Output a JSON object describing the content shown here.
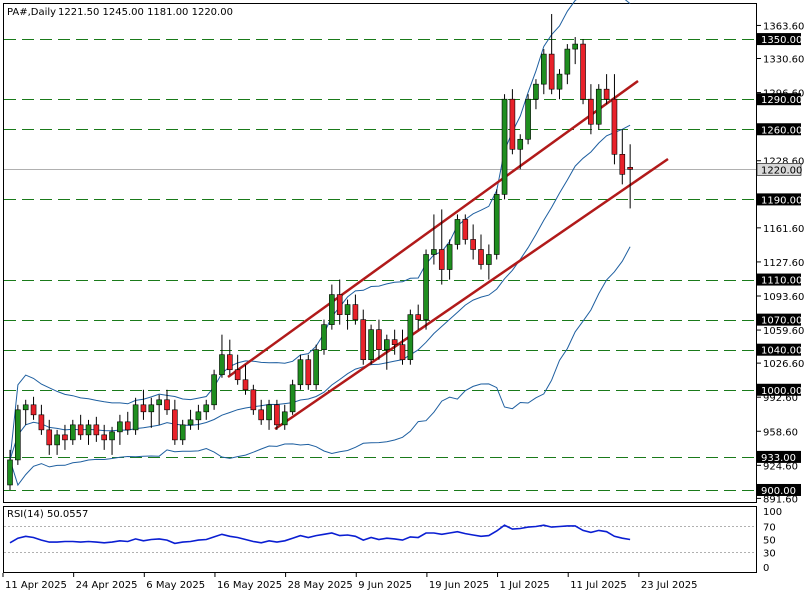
{
  "header": {
    "symbol": "PA#,Daily",
    "ohlc": "1221.50 1245.00 1181.00 1220.00"
  },
  "rsi_header": "RSI(14) 50.0557",
  "chart_data": [
    {
      "type": "candlestick",
      "title": "PA#,Daily",
      "ylim": [
        888,
        1385
      ],
      "y_ticks": [
        "1363.60",
        "1330.60",
        "1296.60",
        "1228.60",
        "1161.60",
        "1127.60",
        "1093.60",
        "1059.60",
        "1026.60",
        "992.60",
        "958.60",
        "924.60",
        "891.60"
      ],
      "x_tick_labels": [
        "11 Apr 2025",
        "24 Apr 2025",
        "6 May 2025",
        "16 May 2025",
        "28 May 2025",
        "9 Jun 2025",
        "19 Jun 2025",
        "1 Jul 2025",
        "11 Jul 2025",
        "23 Jul 2025"
      ],
      "x_tick_index": [
        0,
        9,
        18,
        27,
        36,
        45,
        54,
        63,
        72,
        81
      ],
      "horizontal_levels": [
        {
          "value": 1350,
          "label": "1350.00"
        },
        {
          "value": 1290,
          "label": "1290.00"
        },
        {
          "value": 1260,
          "label": "1260.00"
        },
        {
          "value": 1190,
          "label": "1190.00"
        },
        {
          "value": 1110,
          "label": "1110.00"
        },
        {
          "value": 1070,
          "label": "1070.00"
        },
        {
          "value": 1040,
          "label": "1040.00"
        },
        {
          "value": 1000,
          "label": "1000.00"
        },
        {
          "value": 933,
          "label": "933.00"
        },
        {
          "value": 900,
          "label": "900.00"
        }
      ],
      "current_price": {
        "value": 1220,
        "label": "1220.00"
      },
      "candles": [
        [
          905,
          940,
          900,
          930
        ],
        [
          930,
          985,
          925,
          980
        ],
        [
          980,
          990,
          965,
          985
        ],
        [
          985,
          993,
          970,
          975
        ],
        [
          975,
          985,
          955,
          960
        ],
        [
          960,
          970,
          935,
          945
        ],
        [
          945,
          960,
          935,
          955
        ],
        [
          955,
          965,
          940,
          950
        ],
        [
          950,
          970,
          945,
          965
        ],
        [
          965,
          975,
          950,
          955
        ],
        [
          955,
          970,
          945,
          965
        ],
        [
          965,
          973,
          948,
          955
        ],
        [
          955,
          965,
          940,
          950
        ],
        [
          950,
          963,
          935,
          958
        ],
        [
          958,
          975,
          945,
          968
        ],
        [
          968,
          978,
          955,
          960
        ],
        [
          960,
          992,
          955,
          985
        ],
        [
          985,
          1000,
          970,
          978
        ],
        [
          978,
          992,
          962,
          985
        ],
        [
          985,
          995,
          965,
          990
        ],
        [
          990,
          1000,
          975,
          980
        ],
        [
          980,
          990,
          945,
          950
        ],
        [
          950,
          970,
          945,
          965
        ],
        [
          965,
          980,
          960,
          970
        ],
        [
          970,
          985,
          960,
          978
        ],
        [
          978,
          990,
          970,
          985
        ],
        [
          985,
          1020,
          980,
          1015
        ],
        [
          1015,
          1055,
          1012,
          1035
        ],
        [
          1035,
          1050,
          1015,
          1020
        ],
        [
          1020,
          1035,
          1005,
          1010
        ],
        [
          1010,
          1025,
          995,
          1000
        ],
        [
          1000,
          1005,
          975,
          980
        ],
        [
          980,
          990,
          965,
          970
        ],
        [
          970,
          990,
          960,
          985
        ],
        [
          985,
          990,
          960,
          965
        ],
        [
          965,
          985,
          960,
          978
        ],
        [
          978,
          1010,
          975,
          1005
        ],
        [
          1005,
          1035,
          1000,
          1030
        ],
        [
          1030,
          1035,
          1000,
          1005
        ],
        [
          1005,
          1045,
          1000,
          1040
        ],
        [
          1040,
          1070,
          1035,
          1065
        ],
        [
          1065,
          1105,
          1060,
          1095
        ],
        [
          1095,
          1110,
          1065,
          1075
        ],
        [
          1075,
          1090,
          1060,
          1085
        ],
        [
          1085,
          1095,
          1065,
          1070
        ],
        [
          1070,
          1080,
          1025,
          1030
        ],
        [
          1030,
          1065,
          1025,
          1060
        ],
        [
          1060,
          1070,
          1030,
          1040
        ],
        [
          1040,
          1055,
          1020,
          1050
        ],
        [
          1050,
          1060,
          1035,
          1045
        ],
        [
          1045,
          1060,
          1025,
          1030
        ],
        [
          1030,
          1080,
          1025,
          1075
        ],
        [
          1075,
          1085,
          1060,
          1070
        ],
        [
          1070,
          1140,
          1060,
          1135
        ],
        [
          1135,
          1175,
          1125,
          1140
        ],
        [
          1140,
          1180,
          1105,
          1120
        ],
        [
          1120,
          1150,
          1110,
          1145
        ],
        [
          1145,
          1175,
          1140,
          1170
        ],
        [
          1170,
          1175,
          1145,
          1150
        ],
        [
          1150,
          1165,
          1130,
          1140
        ],
        [
          1140,
          1155,
          1120,
          1125
        ],
        [
          1125,
          1145,
          1110,
          1135
        ],
        [
          1135,
          1200,
          1130,
          1195
        ],
        [
          1195,
          1295,
          1190,
          1290
        ],
        [
          1290,
          1300,
          1235,
          1240
        ],
        [
          1240,
          1255,
          1220,
          1250
        ],
        [
          1250,
          1295,
          1245,
          1290
        ],
        [
          1290,
          1310,
          1280,
          1305
        ],
        [
          1305,
          1340,
          1295,
          1335
        ],
        [
          1335,
          1375,
          1295,
          1300
        ],
        [
          1300,
          1320,
          1290,
          1315
        ],
        [
          1315,
          1345,
          1305,
          1340
        ],
        [
          1340,
          1352,
          1325,
          1345
        ],
        [
          1345,
          1350,
          1285,
          1290
        ],
        [
          1290,
          1305,
          1255,
          1265
        ],
        [
          1265,
          1305,
          1260,
          1300
        ],
        [
          1300,
          1315,
          1285,
          1290
        ],
        [
          1290,
          1315,
          1225,
          1235
        ],
        [
          1235,
          1260,
          1205,
          1215
        ],
        [
          1222,
          1245,
          1181,
          1220
        ]
      ],
      "rsi": {
        "name": "RSI(14)",
        "last_value": 50.0557,
        "levels": [
          70,
          30
        ],
        "axis_labels": [
          "100",
          "70",
          "50",
          "30",
          "0"
        ],
        "values": [
          45,
          52,
          55,
          53,
          49,
          46,
          46,
          47,
          47,
          46,
          47,
          46,
          45,
          46,
          48,
          47,
          51,
          48,
          50,
          51,
          49,
          44,
          46,
          47,
          49,
          50,
          54,
          58,
          55,
          53,
          50,
          47,
          45,
          48,
          46,
          48,
          52,
          56,
          53,
          56,
          58,
          60,
          56,
          57,
          55,
          49,
          53,
          50,
          52,
          51,
          49,
          54,
          53,
          60,
          60,
          58,
          60,
          62,
          59,
          57,
          55,
          56,
          63,
          72,
          66,
          67,
          69,
          70,
          72,
          69,
          70,
          71,
          71,
          64,
          61,
          64,
          62,
          55,
          52,
          50
        ]
      }
    }
  ],
  "colors": {
    "bull": "#1f8e1f",
    "bear": "#e8222a",
    "wick": "#000000",
    "bollinger": "#1e5fa0",
    "channel": "#b11a1a",
    "rsi_line": "#0a1ed2",
    "level_line": "#1a7a1a",
    "label_bg": "#000000",
    "label_fg": "#ffffff"
  }
}
